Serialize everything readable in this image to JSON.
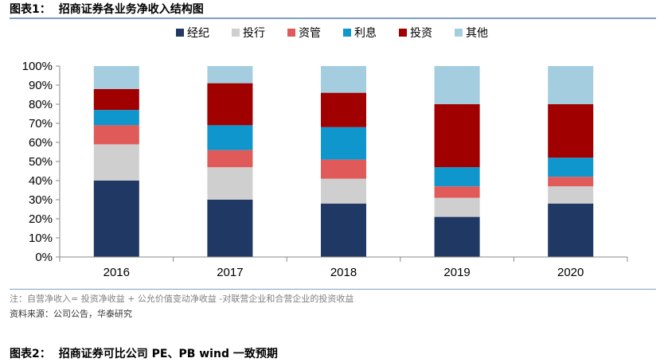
{
  "figure1": {
    "label": "图表1：",
    "title": "招商证券各业务净收入结构图"
  },
  "figure2": {
    "label": "图表2：",
    "title": "招商证券可比公司 PE、PB wind 一致预期"
  },
  "note": "注：自营净收入= 投资净收益 + 公允价值变动净收益 -对联营企业和合营企业的投资收益",
  "source": "资料来源：公司公告，华泰研究",
  "chart_data": {
    "type": "bar",
    "stacked": true,
    "percent": true,
    "categories": [
      "2016",
      "2017",
      "2018",
      "2019",
      "2020"
    ],
    "series": [
      {
        "name": "经纪",
        "color": "#1f3864",
        "values": [
          40,
          30,
          28,
          21,
          28
        ]
      },
      {
        "name": "投行",
        "color": "#cfcfcf",
        "values": [
          19,
          17,
          13,
          10,
          9
        ]
      },
      {
        "name": "资管",
        "color": "#e05a5a",
        "values": [
          10,
          9,
          10,
          6,
          5
        ]
      },
      {
        "name": "利息",
        "color": "#0f96cc",
        "values": [
          8,
          13,
          17,
          10,
          10
        ]
      },
      {
        "name": "投资",
        "color": "#a00000",
        "values": [
          11,
          22,
          18,
          33,
          28
        ]
      },
      {
        "name": "其他",
        "color": "#a5cde0",
        "values": [
          12,
          9,
          14,
          20,
          20
        ]
      }
    ],
    "ylim": [
      0,
      100
    ],
    "yticks": [
      "0%",
      "10%",
      "20%",
      "30%",
      "40%",
      "50%",
      "60%",
      "70%",
      "80%",
      "90%",
      "100%"
    ],
    "legend_position": "top",
    "grid": false
  }
}
